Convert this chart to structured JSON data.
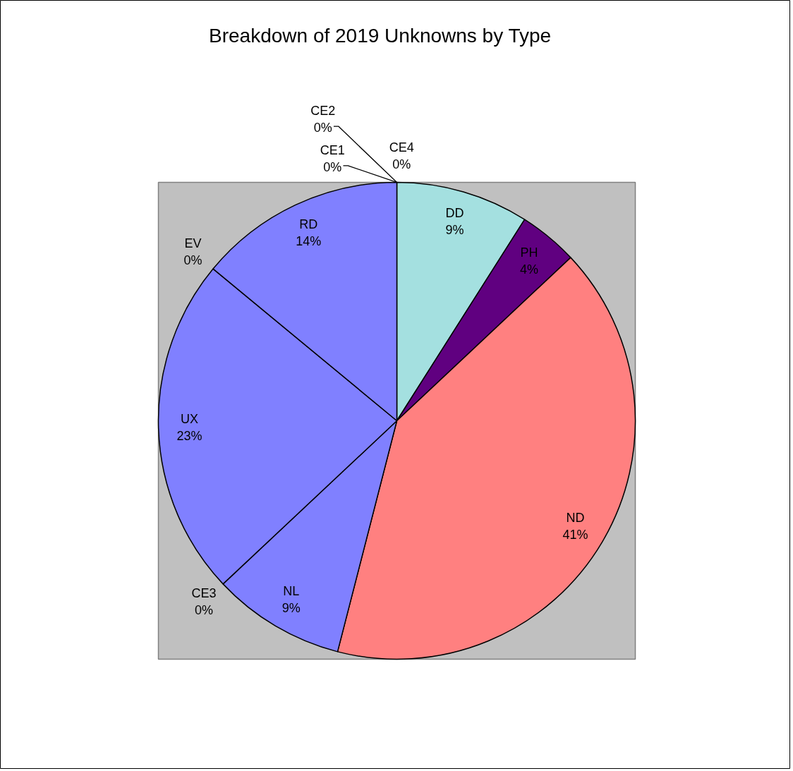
{
  "chart_data": {
    "type": "pie",
    "title": "Breakdown of 2019 Unknowns by Type",
    "categories": [
      "DD",
      "PH",
      "ND",
      "NL",
      "CE3",
      "UX",
      "EV",
      "RD",
      "CE1",
      "CE2",
      "CE4"
    ],
    "values": [
      9,
      4,
      41,
      9,
      0,
      23,
      0,
      14,
      0,
      0,
      0
    ],
    "value_labels": [
      "9%",
      "4%",
      "41%",
      "9%",
      "0%",
      "23%",
      "0%",
      "14%",
      "0%",
      "0%",
      "0%"
    ],
    "colors": [
      "#a4e0e0",
      "#600080",
      "#ff8080",
      "#8080ff",
      "#8080ff",
      "#8080ff",
      "#8080ff",
      "#8080ff",
      "#8080ff",
      "#8080ff",
      "#8080ff"
    ]
  }
}
